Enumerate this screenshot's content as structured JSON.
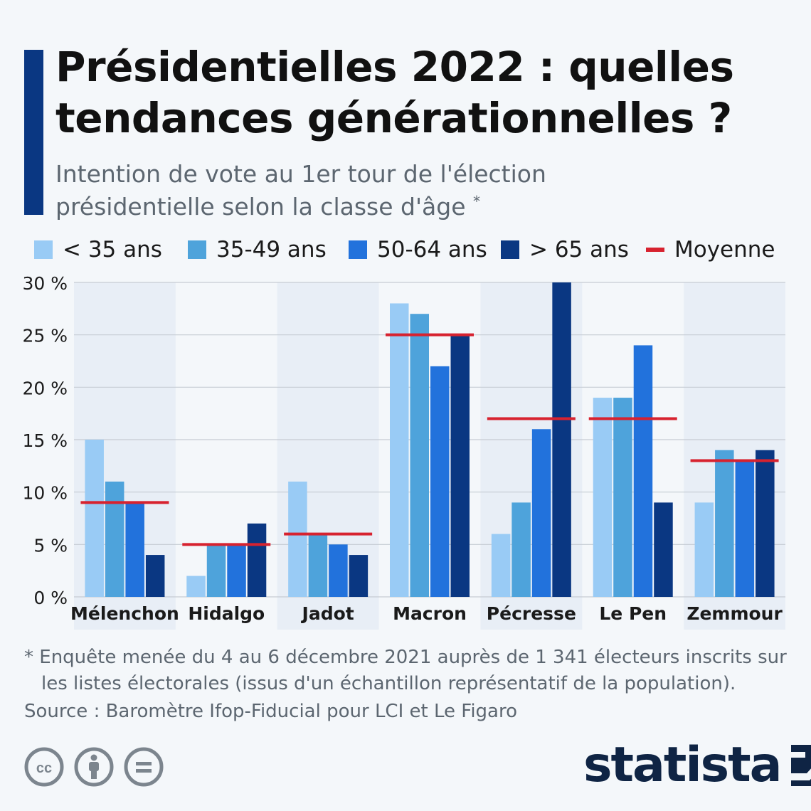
{
  "header": {
    "title": "Présidentielles 2022 : quelles tendances générationnelles ?",
    "subtitle": "Intention de vote au 1er tour de l'élection présidentielle selon la classe d'âge",
    "subtitle_mark": "*"
  },
  "legend": [
    {
      "label": "< 35 ans",
      "color": "#99cbf5",
      "kind": "swatch"
    },
    {
      "label": "35-49 ans",
      "color": "#4ea3db",
      "kind": "swatch"
    },
    {
      "label": "50-64 ans",
      "color": "#2272dc",
      "kind": "swatch"
    },
    {
      "label": "> 65 ans",
      "color": "#0a3782",
      "kind": "swatch"
    },
    {
      "label": "Moyenne",
      "color": "#d7222f",
      "kind": "line"
    }
  ],
  "chart_data": {
    "type": "bar",
    "title": "Intention de vote au 1er tour de l'élection présidentielle selon la classe d'âge",
    "ylabel": "",
    "xlabel": "",
    "ylim": [
      0,
      30
    ],
    "yticks": [
      0,
      5,
      10,
      15,
      20,
      25,
      30
    ],
    "ytick_labels": [
      "0 %",
      "5 %",
      "10 %",
      "15 %",
      "20 %",
      "25 %",
      "30 %"
    ],
    "categories": [
      "Mélenchon",
      "Hidalgo",
      "Jadot",
      "Macron",
      "Pécresse",
      "Le Pen",
      "Zemmour"
    ],
    "series": [
      {
        "name": "< 35 ans",
        "color": "#99cbf5",
        "values": [
          15,
          2,
          11,
          28,
          6,
          19,
          9
        ]
      },
      {
        "name": "35-49 ans",
        "color": "#4ea3db",
        "values": [
          11,
          5,
          6,
          27,
          9,
          19,
          14
        ]
      },
      {
        "name": "50-64 ans",
        "color": "#2272dc",
        "values": [
          9,
          5,
          5,
          22,
          16,
          24,
          13
        ]
      },
      {
        "name": "> 65 ans",
        "color": "#0a3782",
        "values": [
          4,
          7,
          4,
          25,
          30,
          9,
          14
        ]
      }
    ],
    "average": {
      "name": "Moyenne",
      "color": "#d7222f",
      "values": [
        9,
        5,
        6,
        25,
        17,
        17,
        13
      ]
    },
    "grid": true,
    "legend_position": "top"
  },
  "footer": {
    "note_line1": "* Enquête menée du 4 au 6 décembre 2021 auprès de 1 341 électeurs inscrits sur",
    "note_line2": "les listes électorales (issus d'un échantillon représentatif de la population).",
    "source": "Source : Baromètre Ifop-Fiducial pour LCI et Le Figaro",
    "brand": "statista"
  }
}
